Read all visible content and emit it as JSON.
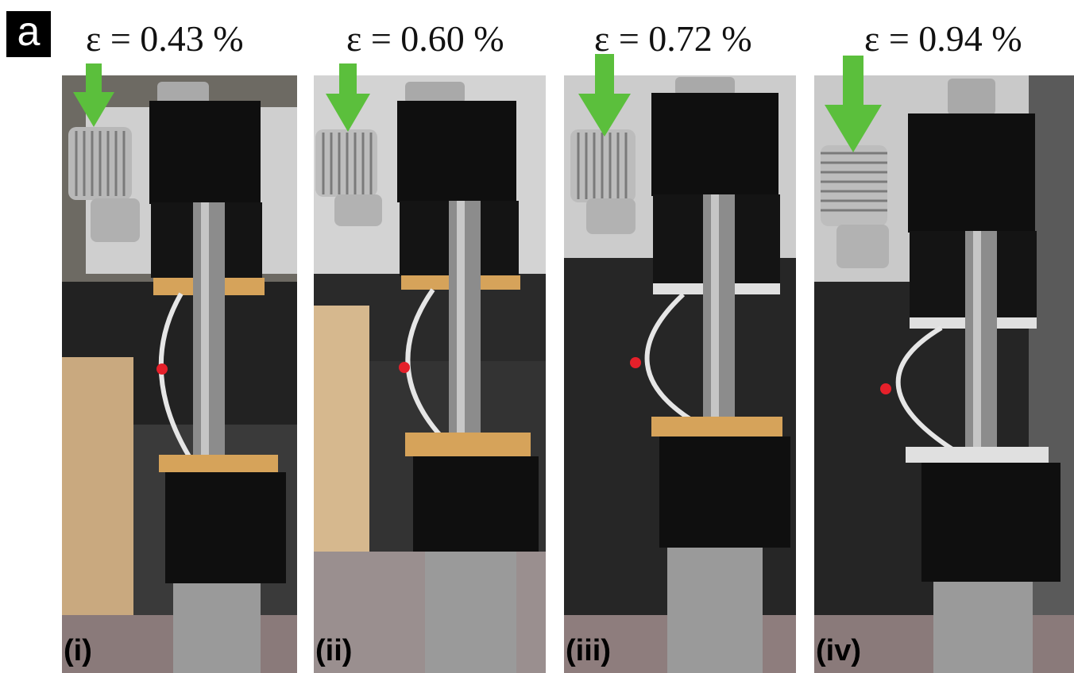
{
  "figure_label": "a",
  "panels": [
    {
      "label": "(i)",
      "strain": "ε = 0.43 %"
    },
    {
      "label": "(ii)",
      "strain": "ε = 0.60 %"
    },
    {
      "label": "(iii)",
      "strain": "ε = 0.72 %"
    },
    {
      "label": "(iv)",
      "strain": "ε = 0.94 %"
    }
  ],
  "colors": {
    "arrow": "#5bbf3c",
    "marker_dot": "#e5202a",
    "mount_block": "#0e0e0e",
    "rod": "#8c8c8c"
  },
  "icons": [
    "down-arrow-icon"
  ]
}
